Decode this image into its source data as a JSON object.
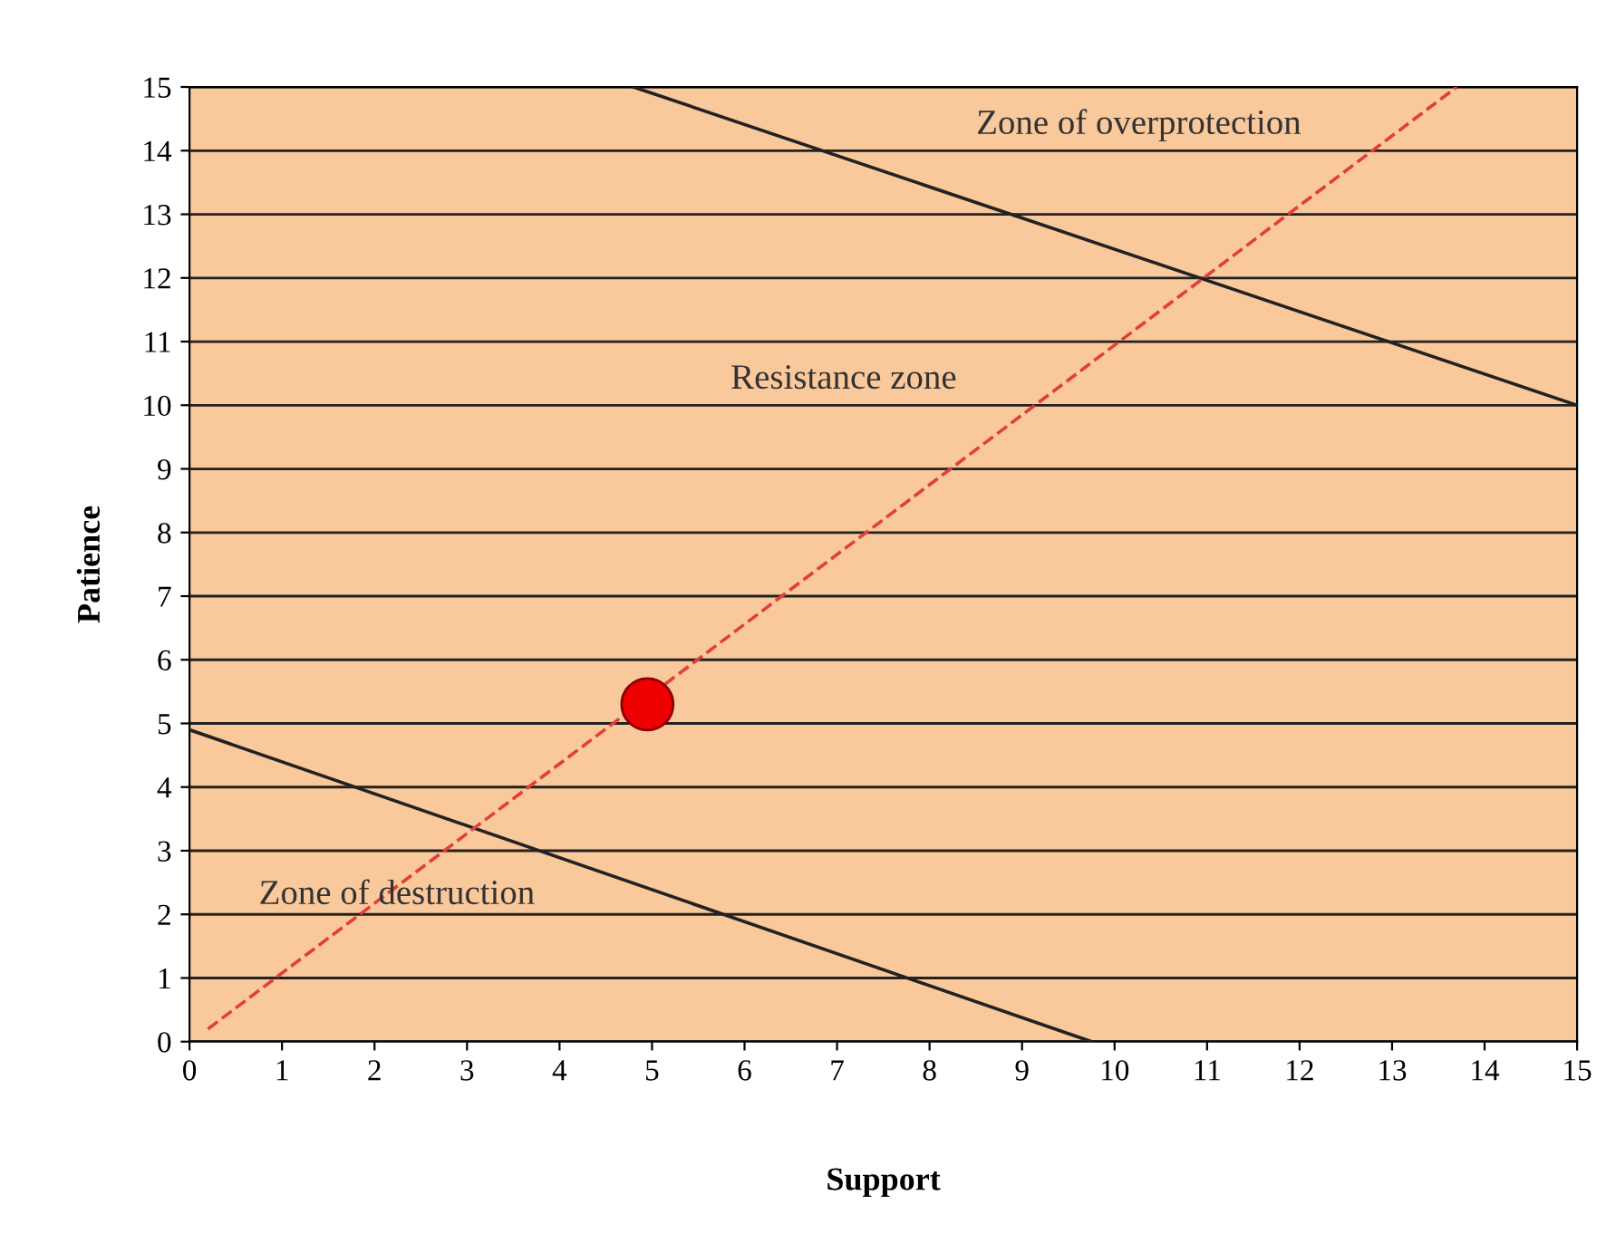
{
  "chart_data": {
    "type": "line",
    "xlabel": "Support",
    "ylabel": "Patience",
    "xlim": [
      0,
      15
    ],
    "ylim": [
      0,
      15
    ],
    "xticks": [
      0,
      1,
      2,
      3,
      4,
      5,
      6,
      7,
      8,
      9,
      10,
      11,
      12,
      13,
      14,
      15
    ],
    "yticks": [
      0,
      1,
      2,
      3,
      4,
      5,
      6,
      7,
      8,
      9,
      10,
      11,
      12,
      13,
      14,
      15
    ],
    "grid": "y",
    "series": [
      {
        "color": "#222222",
        "x": [
          4.8,
          15
        ],
        "values": [
          15,
          10
        ],
        "line_style": "solid"
      },
      {
        "color": "#222222",
        "x": [
          0,
          9.75
        ],
        "values": [
          4.9,
          0
        ],
        "line_style": "solid"
      },
      {
        "color": "#e0403a",
        "x": [
          0.2,
          13.7
        ],
        "values": [
          0.2,
          15
        ],
        "line_style": "dashed"
      },
      {
        "type": "scatter",
        "color": "#ee0000",
        "x": [
          4.95
        ],
        "values": [
          5.3
        ],
        "marker": "circle"
      }
    ],
    "annotations": [
      "Zone of overprotection",
      "Resistance zone",
      "Zone of destruction"
    ]
  }
}
